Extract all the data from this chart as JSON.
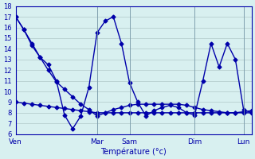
{
  "background_color": "#d8f0f0",
  "grid_color": "#b0c8c8",
  "line_color": "#0000aa",
  "xlabel": "Température (°c)",
  "ylim": [
    6,
    18
  ],
  "yticks": [
    6,
    7,
    8,
    9,
    10,
    11,
    12,
    13,
    14,
    15,
    16,
    17,
    18
  ],
  "day_labels": [
    "Ven",
    "Mar",
    "Sam",
    "Dim",
    "Lun"
  ],
  "day_positions": [
    0,
    10,
    14,
    22,
    28
  ],
  "xlim": [
    0,
    29
  ],
  "series1_x": [
    0,
    1,
    2,
    3,
    4,
    5,
    6,
    7,
    8,
    9,
    10,
    11,
    12,
    13,
    14,
    15,
    16,
    17,
    18,
    19,
    20,
    21,
    22,
    23,
    24,
    25,
    26,
    27,
    28,
    29
  ],
  "series1_y": [
    17.0,
    15.8,
    14.5,
    13.2,
    12.0,
    10.9,
    10.2,
    9.5,
    8.8,
    8.3,
    7.7,
    8.0,
    8.3,
    8.5,
    8.7,
    8.8,
    8.8,
    8.8,
    8.8,
    8.8,
    8.8,
    8.7,
    8.5,
    8.3,
    8.2,
    8.1,
    8.0,
    8.0,
    8.1,
    8.2
  ],
  "series2_x": [
    0,
    1,
    2,
    3,
    4,
    5,
    6,
    7,
    8,
    9,
    10,
    11,
    12,
    13,
    14,
    15,
    16,
    17,
    18,
    19,
    20,
    21,
    22,
    23,
    24,
    25,
    26,
    27,
    28,
    29
  ],
  "series2_y": [
    17.0,
    15.8,
    14.3,
    13.2,
    12.5,
    11.0,
    7.8,
    6.5,
    7.7,
    10.4,
    15.5,
    16.6,
    17.0,
    14.5,
    10.8,
    9.0,
    7.7,
    8.2,
    8.5,
    8.7,
    8.5,
    8.0,
    7.8,
    11.0,
    14.5,
    12.3,
    14.5,
    13.0,
    8.3,
    8.0
  ],
  "series3_x": [
    0,
    1,
    2,
    3,
    4,
    5,
    6,
    7,
    8,
    9,
    10,
    11,
    12,
    13,
    14,
    15,
    16,
    17,
    18,
    19,
    20,
    21,
    22,
    23,
    24,
    25,
    26,
    27,
    28,
    29
  ],
  "series3_y": [
    9.0,
    8.9,
    8.8,
    8.7,
    8.6,
    8.5,
    8.4,
    8.3,
    8.2,
    8.1,
    8.0,
    8.0,
    8.0,
    8.0,
    8.0,
    8.0,
    8.0,
    8.0,
    8.0,
    8.0,
    8.0,
    8.0,
    8.0,
    8.0,
    8.0,
    8.0,
    8.0,
    8.0,
    8.0,
    8.0
  ]
}
